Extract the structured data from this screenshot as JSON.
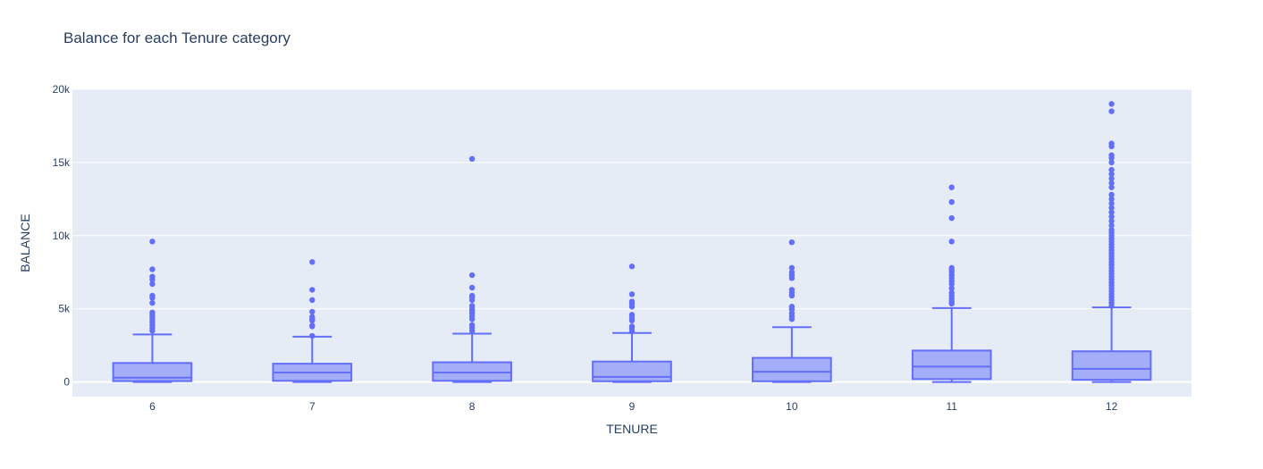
{
  "chart_data": {
    "type": "box",
    "title": "Balance for each Tenure category",
    "xlabel": "TENURE",
    "ylabel": "BALANCE",
    "ylim": [
      -1000,
      20000
    ],
    "yticks": [
      0,
      5000,
      10000,
      15000,
      20000
    ],
    "ytick_labels": [
      "0",
      "5k",
      "10k",
      "15k",
      "20k"
    ],
    "categories": [
      "6",
      "7",
      "8",
      "9",
      "10",
      "11",
      "12"
    ],
    "grid": true,
    "colors": {
      "box": "#636efa",
      "box_fill": "rgba(99,110,250,0.5)",
      "plot_bg": "#e5ecf6",
      "text": "#2a3f5f"
    },
    "boxes": [
      {
        "category": "6",
        "min": 0,
        "q1": 60,
        "median": 300,
        "q3": 1300,
        "max": 3250,
        "outliers": [
          3500,
          3700,
          3900,
          4100,
          4300,
          4450,
          4600,
          4750,
          5400,
          5750,
          5900,
          6700,
          7000,
          7200,
          7700,
          9600
        ]
      },
      {
        "category": "7",
        "min": 0,
        "q1": 80,
        "median": 650,
        "q3": 1250,
        "max": 3100,
        "outliers": [
          3150,
          3800,
          3850,
          4200,
          4300,
          4450,
          4800,
          5600,
          6300,
          8200
        ]
      },
      {
        "category": "8",
        "min": 0,
        "q1": 80,
        "median": 650,
        "q3": 1350,
        "max": 3300,
        "outliers": [
          3500,
          3700,
          3900,
          4300,
          4500,
          4700,
          4850,
          5000,
          5200,
          5600,
          5800,
          5900,
          6450,
          7300,
          15250
        ]
      },
      {
        "category": "9",
        "min": 0,
        "q1": 50,
        "median": 350,
        "q3": 1400,
        "max": 3350,
        "outliers": [
          3450,
          3650,
          3800,
          4200,
          4300,
          4500,
          4600,
          5150,
          5350,
          5500,
          6000,
          7900
        ]
      },
      {
        "category": "10",
        "min": 0,
        "q1": 50,
        "median": 700,
        "q3": 1650,
        "max": 3750,
        "outliers": [
          4300,
          4500,
          4700,
          4950,
          5150,
          5900,
          6100,
          6300,
          7100,
          7300,
          7500,
          7800,
          9550
        ]
      },
      {
        "category": "11",
        "min": 0,
        "q1": 200,
        "median": 1050,
        "q3": 2150,
        "max": 5050,
        "outliers": [
          5350,
          5500,
          5700,
          5900,
          6100,
          6400,
          6700,
          6900,
          7100,
          7300,
          7500,
          7650,
          7800,
          9600,
          11200,
          12300,
          13300
        ]
      },
      {
        "category": "12",
        "min": 0,
        "q1": 150,
        "median": 900,
        "q3": 2100,
        "max": 5100,
        "outliers": [
          5200,
          5400,
          5600,
          5800,
          6000,
          6200,
          6400,
          6600,
          6800,
          7000,
          7200,
          7400,
          7600,
          7800,
          8000,
          8200,
          8400,
          8600,
          8800,
          9000,
          9200,
          9400,
          9600,
          9800,
          10000,
          10200,
          10400,
          10700,
          11000,
          11300,
          11600,
          11900,
          12200,
          12500,
          12800,
          13300,
          13600,
          13900,
          14200,
          14500,
          15000,
          15300,
          15500,
          16100,
          16300,
          18500,
          19000
        ]
      }
    ]
  }
}
